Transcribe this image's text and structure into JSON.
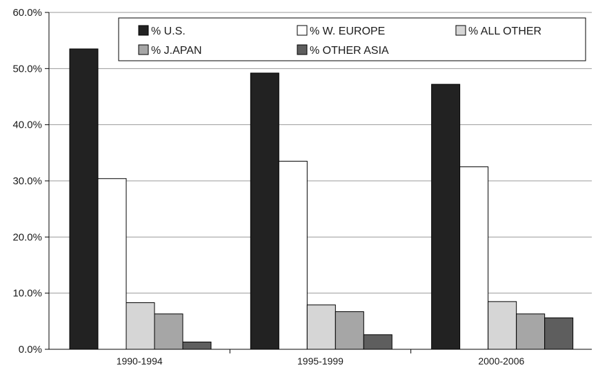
{
  "chart_data": {
    "type": "bar",
    "categories": [
      "1990-1994",
      "1995-1999",
      "2000-2006"
    ],
    "series": [
      {
        "name": "% U.S.",
        "color": "#222222",
        "values": [
          53.5,
          49.2,
          47.2
        ]
      },
      {
        "name": "% W. EUROPE",
        "color": "#ffffff",
        "values": [
          30.4,
          33.5,
          32.5
        ]
      },
      {
        "name": "% ALL OTHER",
        "color": "#d6d6d6",
        "values": [
          8.3,
          7.9,
          8.5
        ]
      },
      {
        "name": "% J.APAN",
        "color": "#a6a6a6",
        "values": [
          6.3,
          6.7,
          6.3
        ]
      },
      {
        "name": "% OTHER ASIA",
        "color": "#5e5e5e",
        "values": [
          1.3,
          2.6,
          5.6
        ]
      }
    ],
    "ylim": [
      0,
      60
    ],
    "yticks": [
      "0.0%",
      "10.0%",
      "20.0%",
      "30.0%",
      "40.0%",
      "50.0%",
      "60.0%"
    ],
    "legend_position": "top",
    "grid": true
  }
}
